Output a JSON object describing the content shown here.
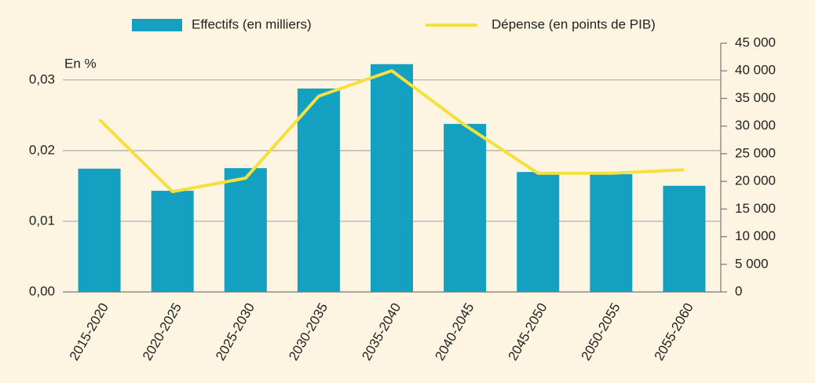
{
  "chart_data": {
    "type": "bar",
    "y_label": "En %",
    "categories": [
      "2015-2020",
      "2020-2025",
      "2025-2030",
      "2030-2035",
      "2035-2040",
      "2040-2045",
      "2045-2050",
      "2050-2055",
      "2055-2060"
    ],
    "series": [
      {
        "name": "Effectifs (en milliers)",
        "type": "bar",
        "axis": "y2",
        "color": "#14a0c0",
        "values": [
          22300,
          18300,
          22400,
          36800,
          41200,
          30400,
          21700,
          21300,
          19200
        ]
      },
      {
        "name": "Dépense (en points de PIB)",
        "type": "line",
        "axis": "y",
        "color": "#f5e040",
        "values": [
          0.0244,
          0.0142,
          0.0161,
          0.0277,
          0.0313,
          0.0236,
          0.0168,
          0.0168,
          0.0173
        ]
      }
    ],
    "ylim": [
      0,
      0.0352
    ],
    "yticks": [
      {
        "value": 0,
        "label": "0,00"
      },
      {
        "value": 0.01,
        "label": "0,01"
      },
      {
        "value": 0.02,
        "label": "0,02"
      },
      {
        "value": 0.03,
        "label": "0,03"
      }
    ],
    "y2lim": [
      0,
      45000
    ],
    "y2ticks": [
      0,
      {
        "value": 5000,
        "label": "5 000"
      },
      {
        "value": 10000,
        "label": "10 000"
      },
      {
        "value": 15000,
        "label": "15 000"
      },
      {
        "value": 20000,
        "label": "20 000"
      },
      {
        "value": 25000,
        "label": "25 000"
      },
      {
        "value": 30000,
        "label": "30 000"
      },
      {
        "value": 35000,
        "label": "35 000"
      },
      {
        "value": 40000,
        "label": "40 000"
      },
      {
        "value": 45000,
        "label": "45 000"
      }
    ],
    "grid": true,
    "legend": "top"
  }
}
